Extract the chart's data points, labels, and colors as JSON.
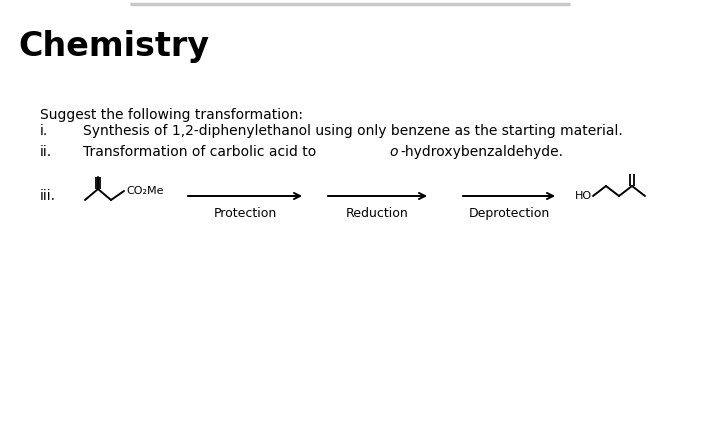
{
  "title": "Chemistry",
  "title_fontsize": 24,
  "bg_color": "#ffffff",
  "text_color": "#000000",
  "suggest_text": "Suggest the following transformation:",
  "item_i_roman": "i.",
  "item_i_text": "Synthesis of 1,2-diphenylethanol using only benzene as the starting material.",
  "item_ii_roman": "ii.",
  "item_ii_text": "Transformation of carbolic acid to ",
  "item_ii_italic": "o",
  "item_ii_text2": "-hydroxybenzaldehyde.",
  "item_iii_roman": "iii.",
  "arrow_labels": [
    "Protection",
    "Reduction",
    "Deprotection"
  ],
  "label_fontsize": 9,
  "body_fontsize": 10,
  "top_bar_color": "#c8c8c8",
  "molecule_left_label": "CO₂Me",
  "molecule_right_label": "HO"
}
